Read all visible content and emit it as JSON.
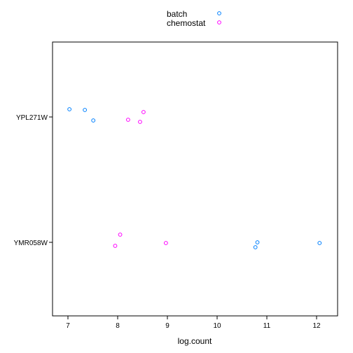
{
  "chart_data": {
    "type": "scatter",
    "title": "",
    "xlabel": "log.count",
    "ylabel": "",
    "xlim": [
      6.7,
      12.4
    ],
    "x_ticks": [
      7,
      8,
      9,
      10,
      11,
      12
    ],
    "categories": [
      "YPL271W",
      "YMR058W"
    ],
    "grid": false,
    "legend_position": "top",
    "series": [
      {
        "name": "batch",
        "color": "#0080ff",
        "points": [
          {
            "category": "YPL271W",
            "x": 7.03
          },
          {
            "category": "YPL271W",
            "x": 7.34
          },
          {
            "category": "YPL271W",
            "x": 7.51
          },
          {
            "category": "YMR058W",
            "x": 10.77
          },
          {
            "category": "YMR058W",
            "x": 10.81
          },
          {
            "category": "YMR058W",
            "x": 12.06
          }
        ]
      },
      {
        "name": "chemostat",
        "color": "#ff00ff",
        "points": [
          {
            "category": "YPL271W",
            "x": 8.21
          },
          {
            "category": "YPL271W",
            "x": 8.45
          },
          {
            "category": "YPL271W",
            "x": 8.52
          },
          {
            "category": "YMR058W",
            "x": 7.95
          },
          {
            "category": "YMR058W",
            "x": 8.05
          },
          {
            "category": "YMR058W",
            "x": 8.97
          }
        ]
      }
    ]
  }
}
